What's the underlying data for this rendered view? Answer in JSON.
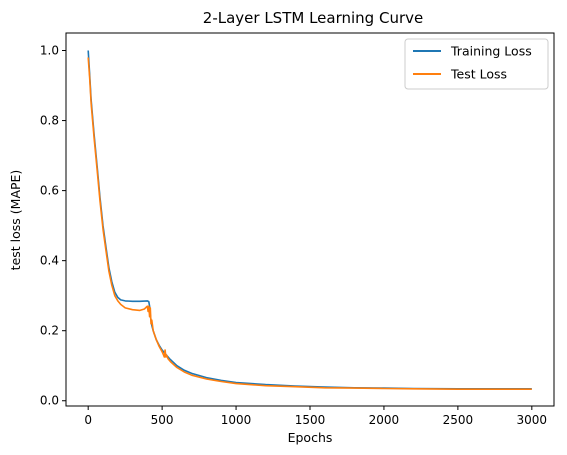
{
  "chart_data": {
    "type": "line",
    "title": "2-Layer LSTM Learning Curve",
    "xlabel": "Epochs",
    "ylabel": "test loss (MAPE)",
    "xlim": [
      -150,
      3150
    ],
    "ylim": [
      -0.015,
      1.05
    ],
    "xticks": [
      0,
      500,
      1000,
      1500,
      2000,
      2500,
      3000
    ],
    "yticks": [
      0.0,
      0.2,
      0.4,
      0.6,
      0.8,
      1.0
    ],
    "xtick_labels": [
      "0",
      "500",
      "1000",
      "1500",
      "2000",
      "2500",
      "3000"
    ],
    "ytick_labels": [
      "0.0",
      "0.2",
      "0.4",
      "0.6",
      "0.8",
      "1.0"
    ],
    "grid": false,
    "legend_position": "top-right",
    "series": [
      {
        "name": "Training Loss",
        "color": "#1f77b4",
        "x": [
          0,
          10,
          20,
          40,
          60,
          80,
          100,
          120,
          140,
          160,
          180,
          200,
          220,
          250,
          300,
          350,
          400,
          410,
          415,
          420,
          425,
          430,
          440,
          460,
          480,
          500,
          520,
          550,
          600,
          650,
          700,
          800,
          900,
          1000,
          1200,
          1400,
          1600,
          1800,
          2000,
          2200,
          2500,
          2800,
          3000
        ],
        "y": [
          1.0,
          0.93,
          0.86,
          0.76,
          0.67,
          0.58,
          0.5,
          0.44,
          0.38,
          0.34,
          0.31,
          0.295,
          0.288,
          0.285,
          0.284,
          0.284,
          0.285,
          0.283,
          0.27,
          0.245,
          0.23,
          0.215,
          0.2,
          0.175,
          0.158,
          0.145,
          0.135,
          0.12,
          0.1,
          0.087,
          0.078,
          0.066,
          0.058,
          0.052,
          0.046,
          0.042,
          0.039,
          0.037,
          0.036,
          0.035,
          0.034,
          0.034,
          0.034
        ]
      },
      {
        "name": "Test Loss",
        "color": "#ff7f0e",
        "x": [
          0,
          10,
          20,
          40,
          60,
          80,
          100,
          120,
          140,
          160,
          180,
          200,
          220,
          250,
          300,
          350,
          380,
          400,
          405,
          410,
          415,
          420,
          425,
          430,
          440,
          460,
          480,
          500,
          510,
          515,
          520,
          525,
          530,
          540,
          560,
          600,
          650,
          700,
          800,
          900,
          1000,
          1200,
          1400,
          1600,
          1800,
          2000,
          2200,
          2500,
          2800,
          3000
        ],
        "y": [
          0.98,
          0.92,
          0.85,
          0.75,
          0.66,
          0.57,
          0.49,
          0.43,
          0.37,
          0.33,
          0.3,
          0.285,
          0.275,
          0.265,
          0.26,
          0.258,
          0.262,
          0.27,
          0.255,
          0.27,
          0.24,
          0.265,
          0.22,
          0.23,
          0.2,
          0.175,
          0.155,
          0.14,
          0.13,
          0.125,
          0.145,
          0.125,
          0.13,
          0.12,
          0.11,
          0.095,
          0.082,
          0.073,
          0.062,
          0.055,
          0.049,
          0.043,
          0.04,
          0.037,
          0.036,
          0.035,
          0.034,
          0.033,
          0.033,
          0.033
        ]
      }
    ]
  }
}
